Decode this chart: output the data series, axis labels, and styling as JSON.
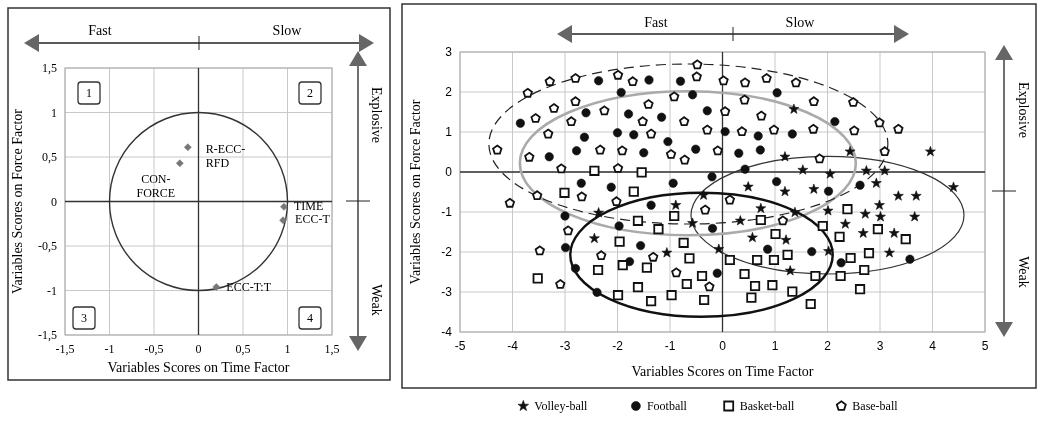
{
  "chart_data": [
    {
      "type": "scatter",
      "xlabel": "Variables Scores on Time Factor",
      "ylabel": "Variables Scores on Force Factor",
      "xlim": [
        -1.5,
        1.5
      ],
      "ylim": [
        -1.5,
        1.5
      ],
      "xticks": [
        {
          "value": -1.5,
          "label": "-1,5"
        },
        -1,
        {
          "value": -0.5,
          "label": "-0,5"
        },
        0,
        {
          "value": 0.5,
          "label": "0,5"
        },
        1,
        {
          "value": 1.5,
          "label": "1,5"
        }
      ],
      "yticks": [
        {
          "value": -1.5,
          "label": "-1,5"
        },
        -1,
        {
          "value": -0.5,
          "label": "-0,5"
        },
        0,
        {
          "value": 0.5,
          "label": "0,5"
        },
        1,
        {
          "value": 1.5,
          "label": "1,5"
        }
      ],
      "grid": true,
      "legend": false,
      "series": [
        {
          "color": "#777777",
          "marker": "diamond",
          "x": [
            -0.12,
            -0.21,
            0.96,
            0.95,
            0.2
          ],
          "values": [
            0.61,
            0.43,
            -0.06,
            -0.21,
            -0.96
          ]
        }
      ],
      "annotations": [
        "Fast",
        "Slow",
        "Explosive",
        "Weak",
        "1",
        "2",
        "3",
        "4",
        {
          "text": "R-ECC-\nRFD",
          "x": -0.12,
          "y": 0.61
        },
        {
          "text": "CON-\nFORCE",
          "x": -0.21,
          "y": 0.43
        },
        {
          "text": "TIME",
          "x": 0.96,
          "y": -0.06
        },
        {
          "text": "ECC-T",
          "x": 0.95,
          "y": -0.21
        },
        {
          "text": "ECC-T:T",
          "x": 0.2,
          "y": -0.96
        }
      ]
    },
    {
      "type": "scatter",
      "xlabel": "Variables Scores on Time Factor",
      "ylabel": "Variables Scores on Force Factor",
      "xlim": [
        -5,
        5
      ],
      "ylim": [
        -4,
        3
      ],
      "xticks": [
        -5,
        -4,
        -3,
        -2,
        -1,
        0,
        1,
        2,
        3,
        4,
        5
      ],
      "yticks": [
        -4,
        -3,
        -2,
        -1,
        0,
        1,
        2,
        3
      ],
      "grid": true,
      "legend": "bottom",
      "series": [
        {
          "name": "Volley-ball",
          "color": "#111111",
          "marker": "star",
          "x": [
            -2.36,
            -0.89,
            -0.36,
            -0.57,
            -2.44,
            -1.06,
            1.36,
            3.96,
            1.19,
            1.53,
            2.05,
            2.43,
            2.74,
            3.09,
            2.93,
            0.49,
            1.19,
            1.74,
            4.4,
            3.35,
            3.69,
            0.73,
            1.38,
            2.01,
            2.72,
            2.99,
            3.01,
            3.66,
            0.34,
            2.34,
            2.68,
            3.27,
            0.57,
            1.21,
            2.02,
            3.18,
            -0.07,
            1.29
          ],
          "values": [
            -1.02,
            -0.83,
            -0.58,
            -1.28,
            -1.66,
            -2.02,
            1.57,
            0.51,
            0.38,
            0.05,
            -0.05,
            0.51,
            0.03,
            0.03,
            -0.28,
            -0.37,
            -0.49,
            -0.43,
            -0.38,
            -0.6,
            -0.6,
            -0.91,
            -1.01,
            -0.97,
            -1.05,
            -0.83,
            -1.12,
            -1.12,
            -1.22,
            -1.3,
            -1.53,
            -1.53,
            -1.64,
            -1.7,
            -1.98,
            -2.02,
            -1.93,
            -2.47
          ]
        },
        {
          "name": "Football",
          "color": "#111111",
          "marker": "circle",
          "x": [
            -2.36,
            -1.4,
            -0.8,
            -1.93,
            -0.57,
            -3.85,
            -2.6,
            -1.79,
            -1.16,
            -0.29,
            -2.63,
            -2.0,
            -1.69,
            -1.04,
            -3.3,
            -2.78,
            -1.5,
            -0.51,
            -2.69,
            -2.12,
            -0.94,
            -0.2,
            -1.36,
            -3.0,
            -1.97,
            -0.19,
            -2.99,
            -1.56,
            1.04,
            2.14,
            0.05,
            0.68,
            1.33,
            0.31,
            0.72,
            0.43,
            1.03,
            2.02,
            2.62,
            0.86,
            1.7,
            3.57,
            -2.8,
            -1.77,
            -2.39,
            -0.1,
            2.26
          ],
          "values": [
            2.28,
            2.3,
            2.27,
            1.99,
            1.93,
            1.22,
            1.48,
            1.45,
            1.37,
            1.53,
            0.87,
            0.98,
            0.93,
            0.76,
            0.38,
            0.53,
            0.48,
            0.57,
            -0.28,
            -0.38,
            -0.28,
            -0.12,
            -0.83,
            -1.1,
            -1.35,
            -1.41,
            -1.89,
            -1.84,
            1.98,
            1.26,
            1.01,
            0.9,
            0.95,
            0.47,
            0.55,
            0.07,
            -0.24,
            -0.48,
            -0.33,
            -1.93,
            -1.99,
            -2.18,
            -2.41,
            -2.24,
            -3.01,
            -2.53,
            -2.27
          ]
        },
        {
          "name": "Basket-ball",
          "color": "#111111",
          "marker": "square",
          "x": [
            -2.44,
            -1.54,
            -3.01,
            -1.69,
            -0.92,
            -1.61,
            -1.22,
            -1.96,
            -0.74,
            2.38,
            0.73,
            1.01,
            1.91,
            2.23,
            2.96,
            3.49,
            1.24,
            2.44,
            2.79,
            -3.52,
            -2.37,
            -1.9,
            -1.44,
            -0.63,
            -1.61,
            -1.99,
            -1.36,
            -0.97,
            -0.68,
            -0.39,
            -0.35,
            0.14,
            0.66,
            0.98,
            0.42,
            0.62,
            0.55,
            0.95,
            1.33,
            1.68,
            1.77,
            2.25,
            2.7,
            2.62
          ],
          "values": [
            0.03,
            -0.01,
            -0.52,
            -0.49,
            -1.1,
            -1.22,
            -1.43,
            -1.74,
            -1.77,
            -0.93,
            -1.2,
            -1.55,
            -1.35,
            -1.62,
            -1.43,
            -1.68,
            -2.07,
            -2.15,
            -2.03,
            -2.66,
            -2.45,
            -2.33,
            -2.39,
            -2.16,
            -2.88,
            -3.08,
            -3.23,
            -3.08,
            -2.8,
            -2.6,
            -3.2,
            -2.2,
            -2.2,
            -2.2,
            -2.55,
            -2.85,
            -3.14,
            -2.83,
            -2.99,
            -3.3,
            -2.6,
            -2.6,
            -2.45,
            -2.93
          ]
        },
        {
          "name": "Base-ball",
          "color": "#111111",
          "x": [
            -3.71,
            -3.29,
            -2.8,
            -1.99,
            -1.71,
            -0.48,
            -0.49,
            -0.92,
            -3.56,
            -3.21,
            -2.8,
            -2.25,
            -2.88,
            -1.52,
            -1.41,
            -0.73,
            -0.29,
            -3.32,
            -1.36,
            -4.29,
            -3.68,
            -2.33,
            -1.91,
            -0.98,
            -0.72,
            -3.07,
            -1.99,
            -4.05,
            -3.53,
            -2.68,
            -2.02,
            -0.33,
            -2.94,
            -3.48,
            0.02,
            0.43,
            0.84,
            1.4,
            0.42,
            0.05,
            0.74,
            0.37,
            0.98,
            1.73,
            1.74,
            2.49,
            2.99,
            3.35,
            2.51,
            3.09,
            -0.09,
            1.85,
            0.14,
            1.15,
            -2.31,
            -3.09,
            -1.32,
            -0.88,
            -0.25
          ],
          "values": [
            1.97,
            2.26,
            2.34,
            2.42,
            2.26,
            2.68,
            2.38,
            1.88,
            1.34,
            1.59,
            1.76,
            1.53,
            1.26,
            1.26,
            1.69,
            1.26,
            1.05,
            0.95,
            0.95,
            0.55,
            0.37,
            0.55,
            0.53,
            0.44,
            0.3,
            0.08,
            0.09,
            -0.78,
            -0.59,
            -0.62,
            -0.74,
            -0.95,
            -1.47,
            -1.97,
            2.28,
            2.23,
            2.34,
            2.23,
            1.8,
            1.51,
            1.4,
            1.01,
            1.05,
            1.07,
            1.76,
            1.74,
            1.23,
            1.07,
            1.03,
            0.51,
            0.53,
            0.33,
            -0.7,
            -1.22,
            -2.09,
            -2.81,
            -2.13,
            -2.52,
            -2.87
          ]
        }
      ],
      "annotations": [
        "Fast",
        "Slow",
        "Explosive",
        "Weak"
      ]
    }
  ]
}
